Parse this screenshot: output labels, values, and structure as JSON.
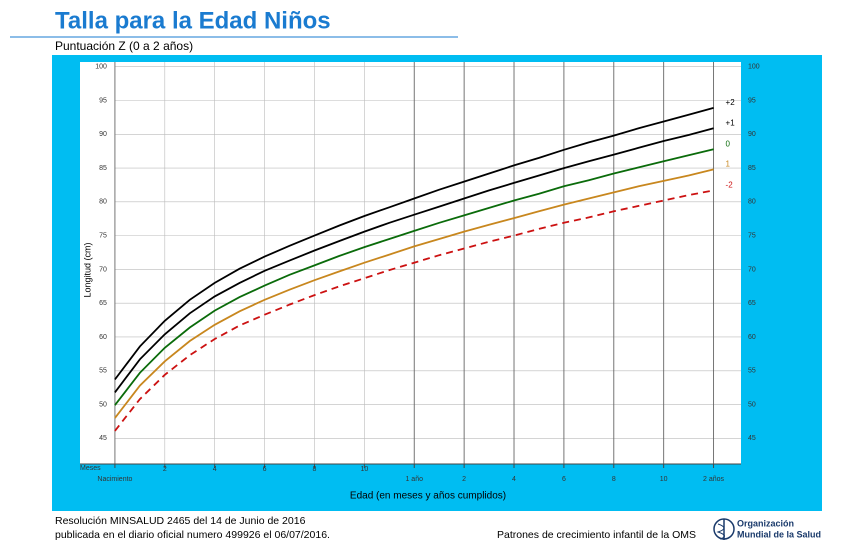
{
  "chart_data": {
    "type": "line",
    "title": "Talla para la Edad Niños",
    "subtitle": "Puntuación Z (0 a 2 años)",
    "xlabel": "Edad (en meses y años cumplidos)",
    "ylabel": "Longitud (cm)",
    "x_unit_label": "Meses",
    "x": [
      0,
      1,
      2,
      3,
      4,
      5,
      6,
      7,
      8,
      9,
      10,
      11,
      12,
      13,
      14,
      15,
      16,
      17,
      18,
      19,
      20,
      21,
      22,
      23,
      24
    ],
    "xlim": [
      -1.4,
      25.1
    ],
    "ylim": [
      41.2,
      100.7
    ],
    "xticks": [
      {
        "value": 0,
        "label": "Nacimiento"
      },
      2,
      4,
      6,
      8,
      10,
      {
        "value": 12,
        "label": "1 año"
      },
      {
        "value": 14,
        "label": "2"
      },
      {
        "value": 16,
        "label": "4"
      },
      {
        "value": 18,
        "label": "6"
      },
      {
        "value": 20,
        "label": "8"
      },
      {
        "value": 22,
        "label": "10"
      },
      {
        "value": 24,
        "label": "2 años"
      }
    ],
    "yticks": [
      45,
      50,
      55,
      60,
      65,
      70,
      75,
      80,
      85,
      90,
      95,
      100
    ],
    "grid": true,
    "series": [
      {
        "name": "+2",
        "color": "#000000",
        "style": "solid",
        "values": [
          53.7,
          58.6,
          62.4,
          65.5,
          68.0,
          70.1,
          71.9,
          73.5,
          75.0,
          76.5,
          77.9,
          79.2,
          80.5,
          81.8,
          83.0,
          84.2,
          85.4,
          86.5,
          87.7,
          88.8,
          89.8,
          90.9,
          91.9,
          92.9,
          93.9
        ]
      },
      {
        "name": "+1",
        "color": "#000000",
        "style": "solid",
        "values": [
          51.8,
          56.7,
          60.4,
          63.5,
          66.0,
          68.0,
          69.8,
          71.3,
          72.8,
          74.2,
          75.6,
          76.9,
          78.1,
          79.3,
          80.5,
          81.7,
          82.8,
          83.9,
          85.0,
          86.0,
          87.0,
          88.0,
          89.0,
          89.9,
          90.9
        ]
      },
      {
        "name": "0",
        "color": "#0a6b0a",
        "style": "solid",
        "values": [
          49.9,
          54.7,
          58.4,
          61.4,
          63.9,
          65.9,
          67.6,
          69.2,
          70.6,
          72.0,
          73.3,
          74.5,
          75.7,
          76.9,
          78.0,
          79.1,
          80.2,
          81.2,
          82.3,
          83.2,
          84.2,
          85.1,
          86.0,
          86.9,
          87.8
        ]
      },
      {
        "name": "1",
        "color": "#c8871e",
        "style": "solid",
        "values": [
          48.0,
          52.8,
          56.4,
          59.4,
          61.8,
          63.8,
          65.5,
          67.0,
          68.4,
          69.7,
          71.0,
          72.2,
          73.4,
          74.5,
          75.6,
          76.6,
          77.6,
          78.6,
          79.6,
          80.5,
          81.4,
          82.3,
          83.1,
          83.9,
          84.8
        ]
      },
      {
        "name": "-2",
        "color": "#cc1111",
        "style": "dashed",
        "values": [
          46.1,
          50.8,
          54.4,
          57.3,
          59.7,
          61.7,
          63.3,
          64.8,
          66.2,
          67.5,
          68.7,
          69.9,
          71.0,
          72.1,
          73.1,
          74.1,
          75.0,
          76.0,
          76.9,
          77.7,
          78.6,
          79.4,
          80.2,
          81.0,
          81.7
        ]
      }
    ]
  },
  "footer": {
    "resolution_line1": "Resolución MINSALUD 2465 del 14 de Junio de 2016",
    "resolution_line2": "publicada en el diario oficial numero 499926 el 06/07/2016.",
    "source": "Patrones de crecimiento infantil de la OMS",
    "who_line1": "Organización",
    "who_line2": "Mundial de la Salud"
  }
}
